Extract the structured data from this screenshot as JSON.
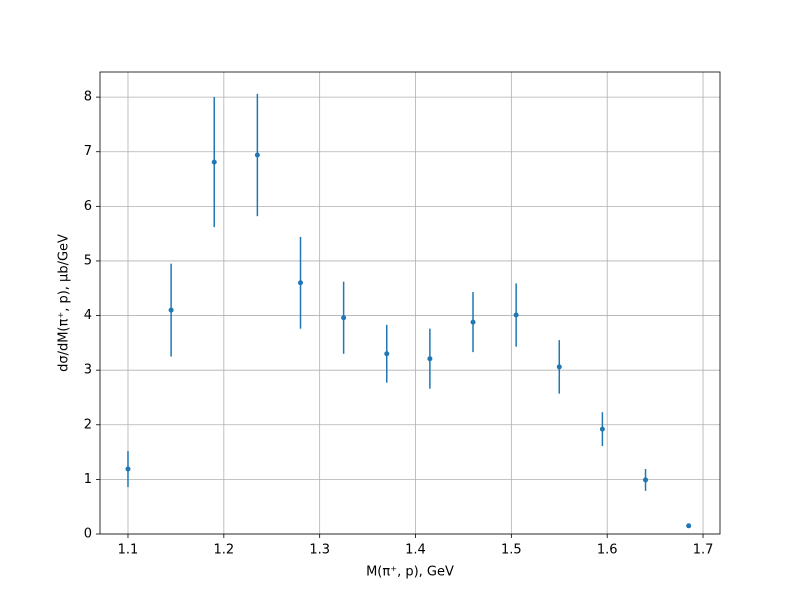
{
  "chart_data": {
    "type": "errorbar",
    "x_label": "M(π⁺, p), GeV",
    "y_label": "dσ/dM(π⁺, p), μb/GeV",
    "x": [
      1.1,
      1.145,
      1.19,
      1.235,
      1.28,
      1.325,
      1.37,
      1.415,
      1.46,
      1.505,
      1.55,
      1.595,
      1.64,
      1.685
    ],
    "values": [
      1.19,
      4.1,
      6.81,
      6.94,
      4.6,
      3.96,
      3.3,
      3.21,
      3.88,
      4.01,
      3.06,
      1.92,
      0.99,
      0.15
    ],
    "errors": [
      0.33,
      0.85,
      1.19,
      1.12,
      0.84,
      0.66,
      0.53,
      0.55,
      0.55,
      0.58,
      0.49,
      0.31,
      0.2,
      0.04
    ],
    "color": "#1f77b4",
    "xlim": [
      1.0708,
      1.7177
    ],
    "xticks": [
      1.1,
      1.2,
      1.3,
      1.4,
      1.5,
      1.6,
      1.7
    ],
    "ylim": [
      0,
      8.46
    ],
    "yticks": [
      0,
      1,
      2,
      3,
      4,
      5,
      6,
      7,
      8
    ],
    "grid": true
  }
}
